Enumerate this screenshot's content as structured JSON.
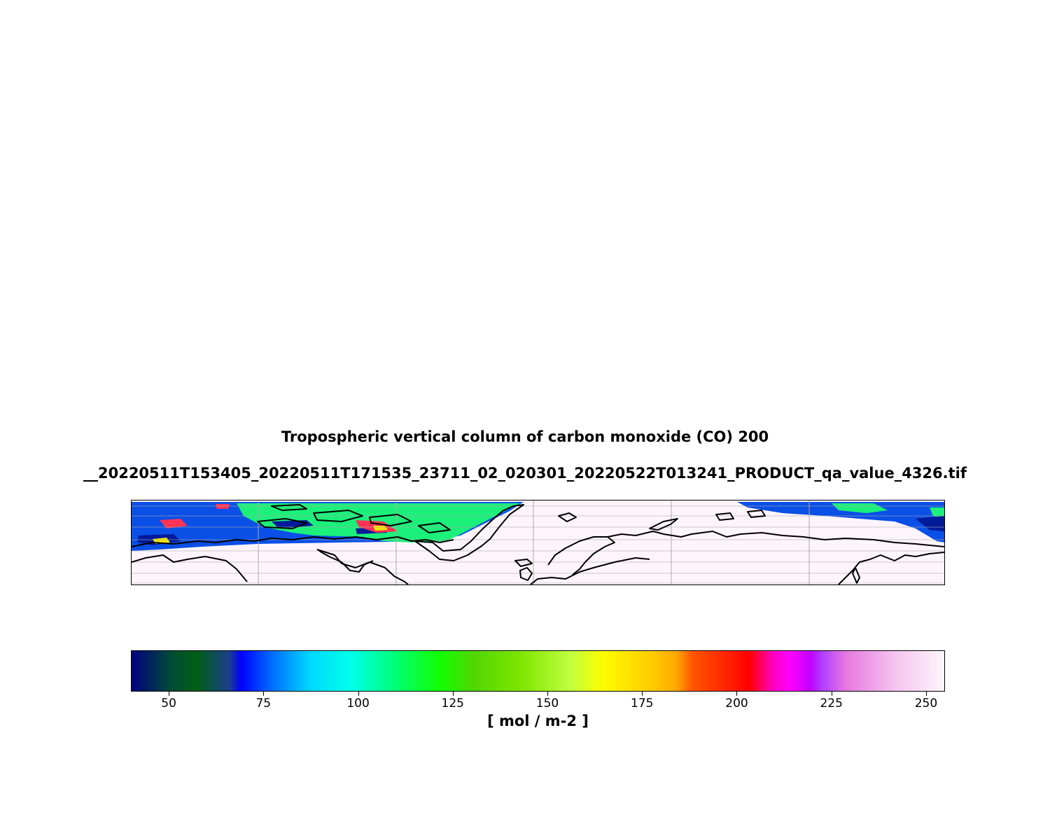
{
  "title": {
    "line1": "Tropospheric vertical column of carbon monoxide (CO) 200",
    "line2": "__20220511T153405_20220511T171535_23711_02_020301_20220522T013241_PRODUCT_qa_value_4326.tif"
  },
  "map": {
    "projection": "plate-carree",
    "coastline_color": "#000000",
    "gridline_color": "#aaaaaa",
    "nodata_color": "#fdf5fb"
  },
  "colorbar": {
    "label": "[ mol / m-2 ]",
    "vmin": 40,
    "vmax": 255,
    "ticks": [
      50,
      75,
      100,
      125,
      150,
      175,
      200,
      225,
      250
    ],
    "tick_labels": [
      "50",
      "75",
      "100",
      "125",
      "150",
      "175",
      "200",
      "225",
      "250"
    ],
    "colormap": "gist_ncar",
    "stops": [
      [
        0.0,
        "#000080"
      ],
      [
        0.05,
        "#004d33"
      ],
      [
        0.08,
        "#005f14"
      ],
      [
        0.12,
        "#1a3f8a"
      ],
      [
        0.16,
        "#0000ff"
      ],
      [
        0.22,
        "#0066ff"
      ],
      [
        0.3,
        "#00d9ff"
      ],
      [
        0.36,
        "#00ffea"
      ],
      [
        0.42,
        "#00ff80"
      ],
      [
        0.5,
        "#11ff00"
      ],
      [
        0.56,
        "#50d602"
      ],
      [
        0.62,
        "#7fe600"
      ],
      [
        0.68,
        "#c0ff3f"
      ],
      [
        0.74,
        "#fdfd00"
      ],
      [
        0.8,
        "#ffcc00"
      ],
      [
        0.85,
        "#ff7f00"
      ],
      [
        0.88,
        "#ff3300"
      ],
      [
        0.93,
        "#ff0000"
      ],
      [
        0.96,
        "#ff00c4"
      ],
      [
        0.98,
        "#ff00ff"
      ],
      [
        1.0,
        "#c100ff"
      ]
    ],
    "stops_tail": [
      [
        "#b040ff",
        0.82
      ],
      [
        "#e879e0",
        0.87
      ],
      [
        "#f5c5f0",
        0.94
      ],
      [
        "#fdf5fb",
        1.0
      ]
    ]
  }
}
